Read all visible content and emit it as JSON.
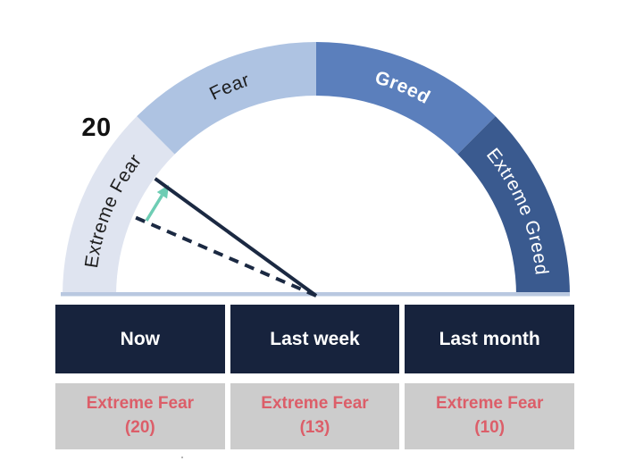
{
  "chart_data": {
    "type": "gauge",
    "axis_range": [
      0,
      100
    ],
    "segments": [
      {
        "label": "Extreme Fear",
        "range": [
          0,
          25
        ],
        "color": "#dfe4f0",
        "text_color": "#1e1e1e",
        "bold": false
      },
      {
        "label": "Fear",
        "range": [
          25,
          50
        ],
        "color": "#aec3e2",
        "text_color": "#1e1e1e",
        "bold": false
      },
      {
        "label": "Greed",
        "range": [
          50,
          75
        ],
        "color": "#5b7fbc",
        "text_color": "#ffffff",
        "bold": true
      },
      {
        "label": "Extreme Greed",
        "range": [
          75,
          100
        ],
        "color": "#3a5a8f",
        "text_color": "#ffffff",
        "bold": false
      }
    ],
    "needles": {
      "current": {
        "value": 20,
        "style": "solid"
      },
      "previous": {
        "value": 13,
        "style": "dashed"
      }
    },
    "value_label": "20",
    "needle_color": "#1b2942",
    "baseline_color": "#b9c8e0",
    "trend_arrow": {
      "direction": "up",
      "color": "#6ecdb4"
    }
  },
  "table": {
    "header_bg": "#17233d",
    "header_text_color": "#ffffff",
    "cell_bg": "#cccccc",
    "cell_text_color": "#dc5e69",
    "columns": [
      {
        "header": "Now",
        "label": "Extreme Fear",
        "value": "(20)"
      },
      {
        "header": "Last week",
        "label": "Extreme Fear",
        "value": "(13)"
      },
      {
        "header": "Last month",
        "label": "Extreme Fear",
        "value": "(10)"
      }
    ]
  }
}
